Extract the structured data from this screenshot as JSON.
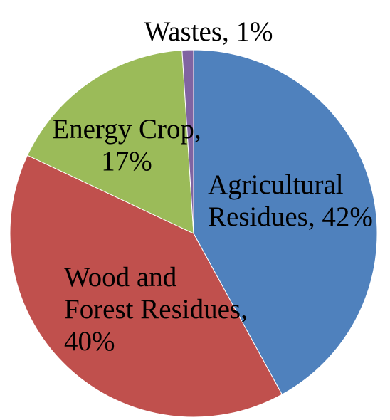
{
  "chart_data": {
    "type": "pie",
    "title": "",
    "slices": [
      {
        "label": "Agricultural Residues",
        "value": 42,
        "color": "#4F81BD",
        "label_lines": [
          "Agricultural",
          "Residues, 42%"
        ]
      },
      {
        "label": "Wood and Forest Residues",
        "value": 40,
        "color": "#C0504D",
        "label_lines": [
          "Wood and",
          "Forest Residues,",
          "40%"
        ]
      },
      {
        "label": "Energy Crop",
        "value": 17,
        "color": "#9BBB59",
        "label_lines": [
          "Energy Crop,",
          "17%"
        ]
      },
      {
        "label": "Wastes",
        "value": 1,
        "color": "#8064A2",
        "label_lines": [
          "Wastes, 1%"
        ]
      }
    ],
    "start_angle_deg": 0,
    "direction": "clockwise",
    "legend": "none",
    "data_labels": "inside"
  }
}
